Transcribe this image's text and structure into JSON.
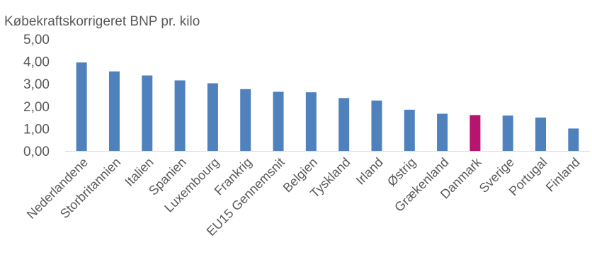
{
  "chart_data": {
    "type": "bar",
    "ylabel": "Købekraftskorrigeret BNP pr. kilo",
    "categories": [
      "Nederlandene",
      "Storbritannien",
      "Italien",
      "Spanien",
      "Luxembourg",
      "Frankrig",
      "EU15 Gennemsnit",
      "Belgien",
      "Tyskland",
      "Irland",
      "Østrig",
      "Grækenland",
      "Danmark",
      "Sverige",
      "Portugal",
      "Finland"
    ],
    "values": [
      3.95,
      3.55,
      3.37,
      3.15,
      3.02,
      2.76,
      2.64,
      2.62,
      2.36,
      2.25,
      1.84,
      1.66,
      1.6,
      1.58,
      1.49,
      1.0
    ],
    "ylim": [
      0,
      5
    ],
    "yticks": [
      "0,00",
      "1,00",
      "2,00",
      "3,00",
      "4,00",
      "5,00"
    ],
    "grid": false,
    "legend": "none",
    "colors": {
      "bar": "#4f81bd",
      "highlight": "#b5146f",
      "highlight_category": "Danmark",
      "axis": "#d9d9d9",
      "text": "#595959"
    }
  }
}
